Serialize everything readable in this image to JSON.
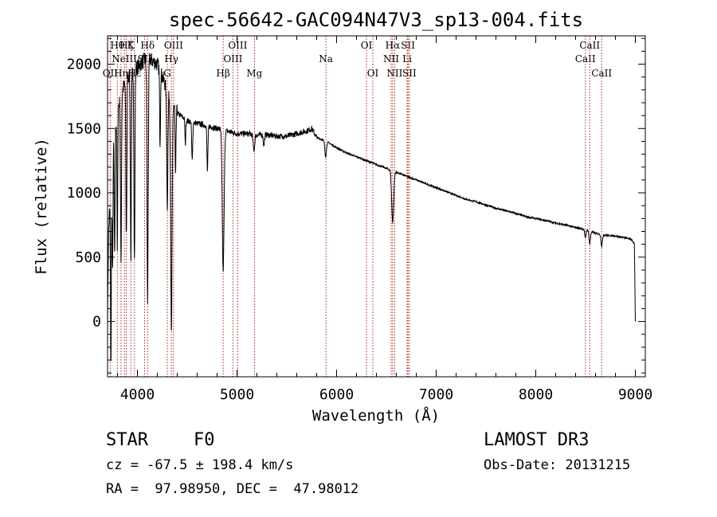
{
  "chart_data": {
    "type": "line",
    "title": "spec-56642-GAC094N47V3_sp13-004.fits",
    "xlabel": "Wavelength (Å)",
    "ylabel": "Flux (relative)",
    "xlim": [
      3700,
      9100
    ],
    "ylim": [
      -430,
      2220
    ],
    "xticks": [
      4000,
      5000,
      6000,
      7000,
      8000,
      9000
    ],
    "yticks": [
      0,
      500,
      1000,
      1500,
      2000
    ],
    "tick_labels_x": [
      "4000",
      "5000",
      "6000",
      "7000",
      "8000",
      "9000"
    ],
    "tick_labels_y": [
      "0",
      "500",
      "1000",
      "1500",
      "2000"
    ],
    "continuum": [
      [
        3700,
        0
      ],
      [
        3710,
        700
      ],
      [
        3730,
        1000
      ],
      [
        3760,
        1400
      ],
      [
        3800,
        1650
      ],
      [
        3850,
        1800
      ],
      [
        3900,
        1900
      ],
      [
        3950,
        1950
      ],
      [
        4000,
        1980
      ],
      [
        4100,
        2050
      ],
      [
        4200,
        2000
      ],
      [
        4300,
        1800
      ],
      [
        4400,
        1620
      ],
      [
        4500,
        1560
      ],
      [
        4600,
        1540
      ],
      [
        4700,
        1520
      ],
      [
        4800,
        1500
      ],
      [
        4900,
        1480
      ],
      [
        5000,
        1460
      ],
      [
        5100,
        1460
      ],
      [
        5200,
        1450
      ],
      [
        5300,
        1450
      ],
      [
        5400,
        1440
      ],
      [
        5500,
        1440
      ],
      [
        5600,
        1460
      ],
      [
        5700,
        1480
      ],
      [
        5750,
        1500
      ],
      [
        5800,
        1430
      ],
      [
        5900,
        1400
      ],
      [
        6000,
        1350
      ],
      [
        6100,
        1310
      ],
      [
        6200,
        1280
      ],
      [
        6300,
        1250
      ],
      [
        6400,
        1220
      ],
      [
        6500,
        1190
      ],
      [
        6600,
        1160
      ],
      [
        6700,
        1130
      ],
      [
        6800,
        1100
      ],
      [
        6900,
        1070
      ],
      [
        7000,
        1040
      ],
      [
        7100,
        1010
      ],
      [
        7200,
        980
      ],
      [
        7300,
        950
      ],
      [
        7400,
        930
      ],
      [
        7500,
        905
      ],
      [
        7600,
        880
      ],
      [
        7700,
        860
      ],
      [
        7800,
        840
      ],
      [
        7900,
        815
      ],
      [
        8000,
        800
      ],
      [
        8100,
        785
      ],
      [
        8200,
        765
      ],
      [
        8300,
        750
      ],
      [
        8400,
        730
      ],
      [
        8500,
        715
      ],
      [
        8600,
        685
      ],
      [
        8700,
        670
      ],
      [
        8800,
        665
      ],
      [
        8900,
        650
      ],
      [
        8960,
        640
      ],
      [
        8990,
        600
      ],
      [
        9000,
        0
      ]
    ],
    "absorption_features": [
      {
        "wavelength": 3734,
        "depth": 1400,
        "width": 4
      },
      {
        "wavelength": 3750,
        "depth": 900,
        "width": 4
      },
      {
        "wavelength": 3771,
        "depth": 1000,
        "width": 4
      },
      {
        "wavelength": 3798,
        "depth": 1100,
        "width": 4
      },
      {
        "wavelength": 3835,
        "depth": 1300,
        "width": 5
      },
      {
        "wavelength": 3889,
        "depth": 1200,
        "width": 5
      },
      {
        "wavelength": 3934,
        "depth": 1450,
        "width": 5
      },
      {
        "wavelength": 3970,
        "depth": 1500,
        "width": 5
      },
      {
        "wavelength": 4102,
        "depth": 1900,
        "width": 6
      },
      {
        "wavelength": 4227,
        "depth": 550,
        "width": 4
      },
      {
        "wavelength": 4300,
        "depth": 900,
        "width": 6
      },
      {
        "wavelength": 4341,
        "depth": 1850,
        "width": 7
      },
      {
        "wavelength": 4383,
        "depth": 550,
        "width": 4
      },
      {
        "wavelength": 4481,
        "depth": 200,
        "width": 4
      },
      {
        "wavelength": 4550,
        "depth": 300,
        "width": 5
      },
      {
        "wavelength": 4703,
        "depth": 350,
        "width": 5
      },
      {
        "wavelength": 4861,
        "depth": 1100,
        "width": 9
      },
      {
        "wavelength": 5170,
        "depth": 120,
        "width": 8
      },
      {
        "wavelength": 5270,
        "depth": 80,
        "width": 6
      },
      {
        "wavelength": 5890,
        "depth": 120,
        "width": 8
      },
      {
        "wavelength": 6563,
        "depth": 400,
        "width": 10
      },
      {
        "wavelength": 8498,
        "depth": 70,
        "width": 6
      },
      {
        "wavelength": 8542,
        "depth": 100,
        "width": 7
      },
      {
        "wavelength": 8662,
        "depth": 90,
        "width": 7
      }
    ],
    "line_markers": [
      {
        "wavelength": 3727,
        "label": "OII",
        "row": 3
      },
      {
        "wavelength": 3798,
        "label": "Hθ",
        "row": 1
      },
      {
        "wavelength": 3835,
        "label": "Hη",
        "row": 3
      },
      {
        "wavelength": 3869,
        "label": "NeIII",
        "row": 2
      },
      {
        "wavelength": 3889,
        "label": "Hζ",
        "row": 1
      },
      {
        "wavelength": 3934,
        "label": "K",
        "row": 1
      },
      {
        "wavelength": 3970,
        "label": "Hε",
        "row": 3
      },
      {
        "wavelength": 4072,
        "label": "SII",
        "row": 2
      },
      {
        "wavelength": 4102,
        "label": "Hδ",
        "row": 1
      },
      {
        "wavelength": 4300,
        "label": "G",
        "row": 3
      },
      {
        "wavelength": 4341,
        "label": "Hγ",
        "row": 2
      },
      {
        "wavelength": 4363,
        "label": "OIII",
        "row": 1
      },
      {
        "wavelength": 4861,
        "label": "Hβ",
        "row": 3
      },
      {
        "wavelength": 4959,
        "label": "OIII",
        "row": 2
      },
      {
        "wavelength": 5007,
        "label": "OIII",
        "row": 1
      },
      {
        "wavelength": 5175,
        "label": "Mg",
        "row": 3
      },
      {
        "wavelength": 5893,
        "label": "Na",
        "row": 2
      },
      {
        "wavelength": 6300,
        "label": "OI",
        "row": 1
      },
      {
        "wavelength": 6364,
        "label": "OI",
        "row": 3
      },
      {
        "wavelength": 6548,
        "label": "NII",
        "row": 2
      },
      {
        "wavelength": 6563,
        "label": "Hα",
        "row": 1
      },
      {
        "wavelength": 6583,
        "label": "NII",
        "row": 3
      },
      {
        "wavelength": 6708,
        "label": "Li",
        "row": 2
      },
      {
        "wavelength": 6717,
        "label": "SII",
        "row": 1
      },
      {
        "wavelength": 6731,
        "label": "SII",
        "row": 3
      },
      {
        "wavelength": 8498,
        "label": "CaII",
        "row": 2
      },
      {
        "wavelength": 8542,
        "label": "CaII",
        "row": 1
      },
      {
        "wavelength": 8662,
        "label": "CaII",
        "row": 3
      }
    ]
  },
  "info": {
    "object_class": "STAR",
    "subclass": "F0",
    "redshift_text": "cz = -67.5 ± 198.4 km/s",
    "coords_text": "RA =  97.98950, DEC =  47.98012",
    "survey": "LAMOST DR3",
    "obs_date": "Obs-Date: 20131215"
  },
  "colors": {
    "spectrum": "#000000",
    "marker": "#b22222",
    "axes": "#000000",
    "background": "#ffffff"
  }
}
